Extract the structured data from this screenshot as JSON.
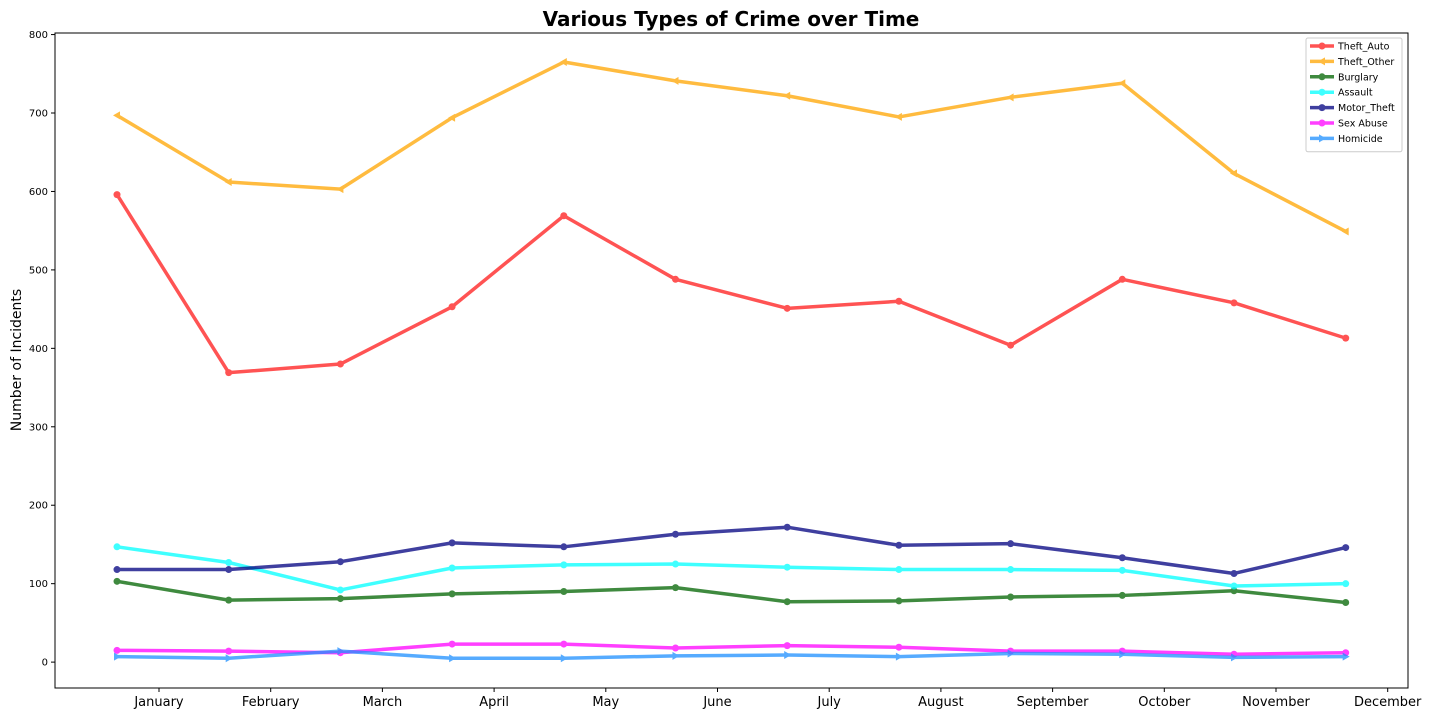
{
  "chart_data": {
    "type": "line",
    "title": "Various Types of Crime over Time",
    "xlabel": "",
    "ylabel": "Number of Incidents",
    "categories": [
      "January",
      "February",
      "March",
      "April",
      "May",
      "June",
      "July",
      "August",
      "September",
      "October",
      "November",
      "December"
    ],
    "ylim": [
      -33,
      802
    ],
    "yticks": [
      0,
      100,
      200,
      300,
      400,
      500,
      600,
      700,
      800
    ],
    "grid": false,
    "legend_position": "top-right",
    "series": [
      {
        "name": "Theft_Auto",
        "color": "#ff1a1a",
        "marker": "circle",
        "values": [
          596,
          369,
          380,
          453,
          569,
          488,
          451,
          460,
          404,
          488,
          458,
          413
        ]
      },
      {
        "name": "Theft_Other",
        "color": "#ffa500",
        "marker": "triangle-left",
        "values": [
          697,
          612,
          603,
          694,
          765,
          741,
          722,
          695,
          720,
          738,
          623,
          549
        ]
      },
      {
        "name": "Burglary",
        "color": "#006400",
        "marker": "circle",
        "values": [
          103,
          79,
          81,
          87,
          90,
          95,
          77,
          78,
          83,
          85,
          91,
          76
        ]
      },
      {
        "name": "Assault",
        "color": "#00ffff",
        "marker": "circle",
        "values": [
          147,
          127,
          92,
          120,
          124,
          125,
          121,
          118,
          118,
          117,
          97,
          100
        ]
      },
      {
        "name": "Motor_Theft",
        "color": "#000080",
        "marker": "circle",
        "values": [
          118,
          118,
          128,
          152,
          147,
          163,
          172,
          149,
          151,
          133,
          113,
          146
        ]
      },
      {
        "name": "Sex Abuse",
        "color": "#ff00ff",
        "marker": "circle",
        "values": [
          15,
          14,
          12,
          23,
          23,
          18,
          21,
          19,
          14,
          14,
          10,
          12
        ]
      },
      {
        "name": "Homicide",
        "color": "#1e90ff",
        "marker": "triangle-right",
        "values": [
          7,
          5,
          14,
          5,
          5,
          8,
          9,
          7,
          11,
          10,
          6,
          7
        ]
      }
    ]
  }
}
